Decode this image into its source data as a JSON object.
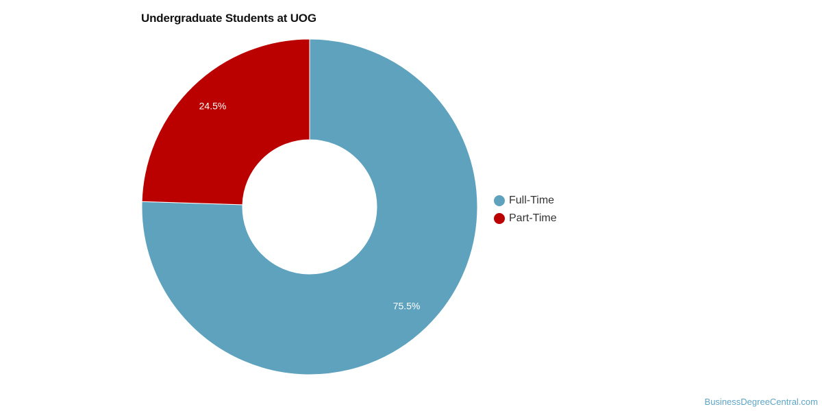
{
  "chart_data": {
    "type": "pie",
    "title": "Undergraduate Students at UOG",
    "donut": true,
    "categories": [
      "Full-Time",
      "Part-Time"
    ],
    "values": [
      75.5,
      24.5
    ],
    "value_labels": [
      "75.5%",
      "24.5%"
    ],
    "colors": [
      "#5ea2be",
      "#bb0000"
    ],
    "legend_position": "right"
  },
  "source": "BusinessDegreeCentral.com"
}
